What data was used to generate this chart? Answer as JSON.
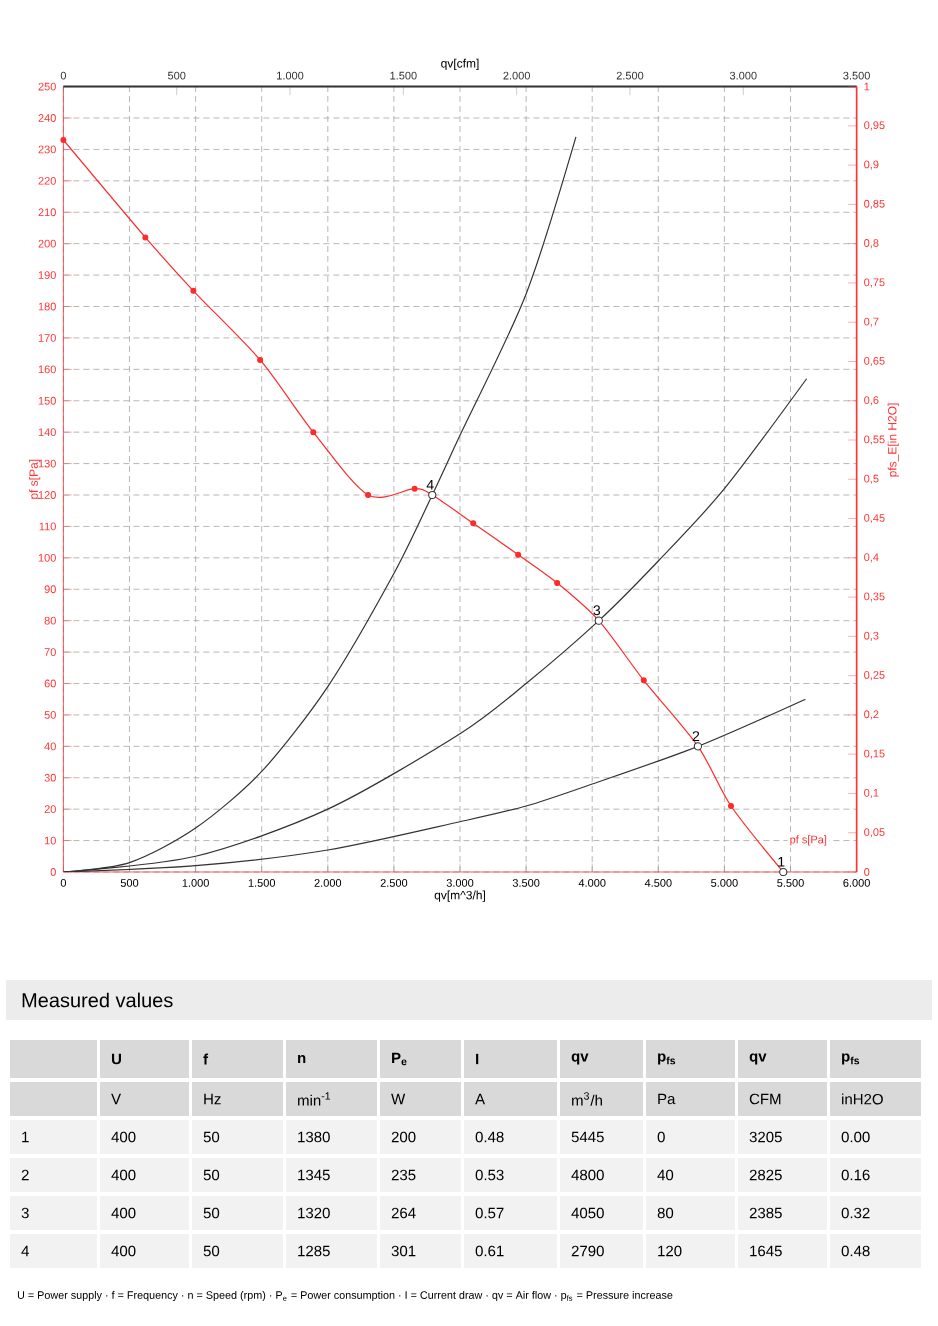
{
  "chart_data": {
    "type": "line",
    "xlabel": "qv[m^3/h]",
    "x2label": "qv[cfm]",
    "ylabel": "pf s[Pa]",
    "y2label": "pfs_E[in H2O]",
    "xlim": [
      0,
      6000
    ],
    "xticks": [
      0,
      500,
      {
        "value": 1000,
        "label": "1.000"
      },
      {
        "value": 1500,
        "label": "1.500"
      },
      {
        "value": 2000,
        "label": "2.000"
      },
      {
        "value": 2500,
        "label": "2.500"
      },
      {
        "value": 3000,
        "label": "3.000"
      },
      {
        "value": 3500,
        "label": "3.500"
      },
      {
        "value": 4000,
        "label": "4.000"
      },
      {
        "value": 4500,
        "label": "4.500"
      },
      {
        "value": 5000,
        "label": "5.000"
      },
      {
        "value": 5500,
        "label": "5.500"
      },
      {
        "value": 6000,
        "label": "6.000"
      }
    ],
    "x2lim": [
      0,
      3500
    ],
    "x2ticks": [
      0,
      500,
      {
        "value": 1000,
        "label": "1.000"
      },
      {
        "value": 1500,
        "label": "1.500"
      },
      {
        "value": 2000,
        "label": "2.000"
      },
      {
        "value": 2500,
        "label": "2.500"
      },
      {
        "value": 3000,
        "label": "3.000"
      },
      {
        "value": 3500,
        "label": "3.500"
      }
    ],
    "ylim": [
      0,
      250
    ],
    "yticks": [
      0,
      10,
      20,
      30,
      40,
      50,
      60,
      70,
      80,
      90,
      100,
      110,
      120,
      130,
      140,
      150,
      160,
      170,
      180,
      190,
      200,
      210,
      220,
      230,
      240,
      250
    ],
    "y2lim": [
      0,
      1
    ],
    "y2ticks": [
      0,
      {
        "value": 0.05,
        "label": "0,05"
      },
      {
        "value": 0.1,
        "label": "0,1"
      },
      {
        "value": 0.15,
        "label": "0,15"
      },
      {
        "value": 0.2,
        "label": "0,2"
      },
      {
        "value": 0.25,
        "label": "0,25"
      },
      {
        "value": 0.3,
        "label": "0,3"
      },
      {
        "value": 0.35,
        "label": "0,35"
      },
      {
        "value": 0.4,
        "label": "0,4"
      },
      {
        "value": 0.45,
        "label": "0,45"
      },
      {
        "value": 0.5,
        "label": "0,5"
      },
      {
        "value": 0.55,
        "label": "0,55"
      },
      {
        "value": 0.6,
        "label": "0,6"
      },
      {
        "value": 0.65,
        "label": "0,65"
      },
      {
        "value": 0.7,
        "label": "0,7"
      },
      {
        "value": 0.75,
        "label": "0,75"
      },
      {
        "value": 0.8,
        "label": "0,8"
      },
      {
        "value": 0.85,
        "label": "0,85"
      },
      {
        "value": 0.9,
        "label": "0,9"
      },
      {
        "value": 0.95,
        "label": "0,95"
      },
      1
    ],
    "grid": true,
    "legend": false,
    "series": [
      {
        "name": "pf s[Pa]",
        "marker": "circle",
        "color": "#ff2a2a",
        "x": [
          0,
          620,
          983,
          1488,
          1890,
          2305,
          2657,
          2790,
          3100,
          3440,
          3735,
          4050,
          4390,
          4800,
          5050,
          5445
        ],
        "values": [
          233,
          202,
          185,
          163,
          140,
          120,
          122,
          120,
          111,
          101,
          92,
          80,
          61,
          40,
          21,
          0
        ]
      },
      {
        "marker": "none",
        "color": "#333333",
        "x": [
          0,
          500,
          1000,
          1500,
          2000,
          2500,
          2790,
          3000,
          3500,
          3877
        ],
        "values": [
          0,
          3,
          14,
          32,
          59,
          95,
          120,
          139,
          184,
          234
        ]
      },
      {
        "marker": "none",
        "color": "#333333",
        "x": [
          0,
          1000,
          2000,
          3000,
          3500,
          4050,
          4500,
          5000,
          5622
        ],
        "values": [
          0,
          5,
          20,
          44,
          60,
          80,
          99,
          122,
          157
        ]
      },
      {
        "marker": "none",
        "color": "#333333",
        "x": [
          0,
          1000,
          2000,
          3000,
          3500,
          4000,
          4800,
          5613
        ],
        "values": [
          0,
          2,
          7,
          16,
          21,
          28,
          40,
          55
        ]
      },
      {
        "type": "scatter",
        "marker": "circle",
        "color": "#333333",
        "x": [
          5445,
          4800,
          4050,
          2790
        ],
        "values": [
          0,
          40,
          80,
          120
        ]
      }
    ],
    "annotations": [
      {
        "text": "1",
        "x": 5445,
        "y": 0
      },
      {
        "text": "2",
        "x": 4800,
        "y": 40
      },
      {
        "text": "3",
        "x": 4050,
        "y": 80
      },
      {
        "text": "4",
        "x": 2790,
        "y": 120
      },
      "Measured values",
      "U",
      "f",
      "n",
      "P$_{e}$",
      "I",
      "qv",
      "p$_{fs}$",
      "qv",
      "p$_{fs}$",
      "V",
      "Hz",
      "min$^{-1}$",
      "W",
      "A",
      "m$^{3}$/h",
      "Pa",
      "CFM",
      "inH2O",
      "1",
      "400",
      "50",
      "1380",
      "200",
      "0.48",
      "5445",
      "0",
      "3205",
      "0.00",
      "2",
      "400",
      "50",
      "1345",
      "235",
      "0.53",
      "4800",
      "40",
      "2825",
      "0.16",
      "3",
      "400",
      "50",
      "1320",
      "264",
      "0.57",
      "4050",
      "80",
      "2385",
      "0.32",
      "4",
      "400",
      "50",
      "1285",
      "301",
      "0.61",
      "2790",
      "120",
      "1645",
      "0.48",
      "U = Power supply · f = Frequency · n = Speed (rpm) · P$_{e}$ = Power consumption · I = Current draw · qv = Air flow · p$_{fs}$ = Pressure increase"
    ]
  }
}
